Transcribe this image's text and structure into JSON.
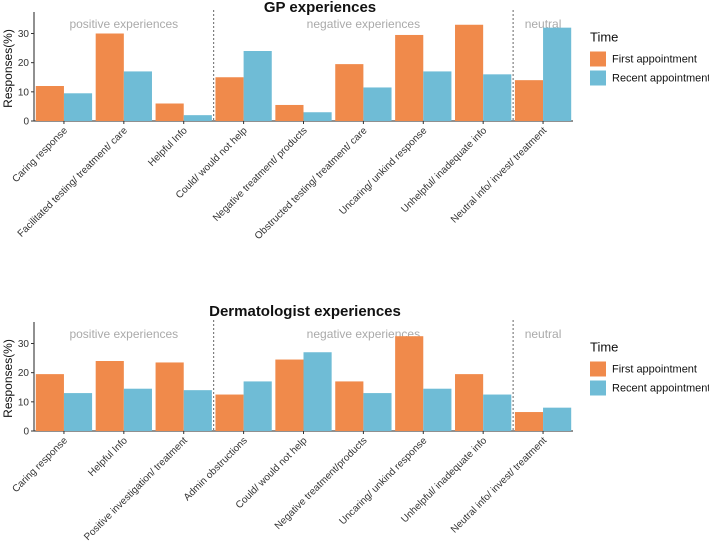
{
  "chart_data": [
    {
      "type": "bar",
      "title": "GP experiences",
      "ylabel": "Responses(%)",
      "xlabel": "",
      "ylim": [
        0,
        36
      ],
      "yticks": [
        0,
        10,
        20,
        30
      ],
      "categories": [
        "Caring response",
        "Facilitated testing/ treatment/ care",
        "Helpful Info",
        "Could/ would not help",
        "Negative treatment/ products",
        "Obstructed testing/ treatment/ care",
        "Uncaring/ unkind response",
        "Unhelpful/ inadequate info",
        "Neutral info/ invest/ treatment"
      ],
      "groups": [
        {
          "label": "positive experiences",
          "categories": 3
        },
        {
          "label": "negative experiences",
          "categories": 5
        },
        {
          "label": "neutral",
          "categories": 1
        }
      ],
      "series": [
        {
          "name": "First appointment",
          "color": "#F08A4B",
          "values": [
            12,
            30,
            6,
            15,
            5.5,
            19.5,
            29.5,
            33,
            14
          ]
        },
        {
          "name": "Recent appointment",
          "color": "#6FBCD6",
          "values": [
            9.5,
            17,
            2,
            24,
            3,
            11.5,
            17,
            16,
            32
          ]
        }
      ],
      "legend": {
        "title": "Time",
        "position": "right"
      }
    },
    {
      "type": "bar",
      "title": "Dermatologist experiences",
      "ylabel": "Responses(%)",
      "xlabel": "",
      "ylim": [
        0,
        36
      ],
      "yticks": [
        0,
        10,
        20,
        30
      ],
      "categories": [
        "Caring response",
        "Helpful Info",
        "Positive investigation/ treatment",
        "Admin obstructions",
        "Could/ would not help",
        "Negative treatment/products",
        "Uncaring/ unkind response",
        "Unhelpful/ inadequate info",
        "Neutral info/ invest/ treatment"
      ],
      "groups": [
        {
          "label": "positive experiences",
          "categories": 3
        },
        {
          "label": "negative experiences",
          "categories": 5
        },
        {
          "label": "neutral",
          "categories": 1
        }
      ],
      "series": [
        {
          "name": "First appointment",
          "color": "#F08A4B",
          "values": [
            19.5,
            24,
            23.5,
            12.5,
            24.5,
            17,
            32.5,
            19.5,
            6.5
          ]
        },
        {
          "name": "Recent appointment",
          "color": "#6FBCD6",
          "values": [
            13,
            14.5,
            14,
            17,
            27,
            13,
            14.5,
            12.5,
            8
          ]
        }
      ],
      "legend": {
        "title": "Time",
        "position": "right"
      }
    }
  ]
}
